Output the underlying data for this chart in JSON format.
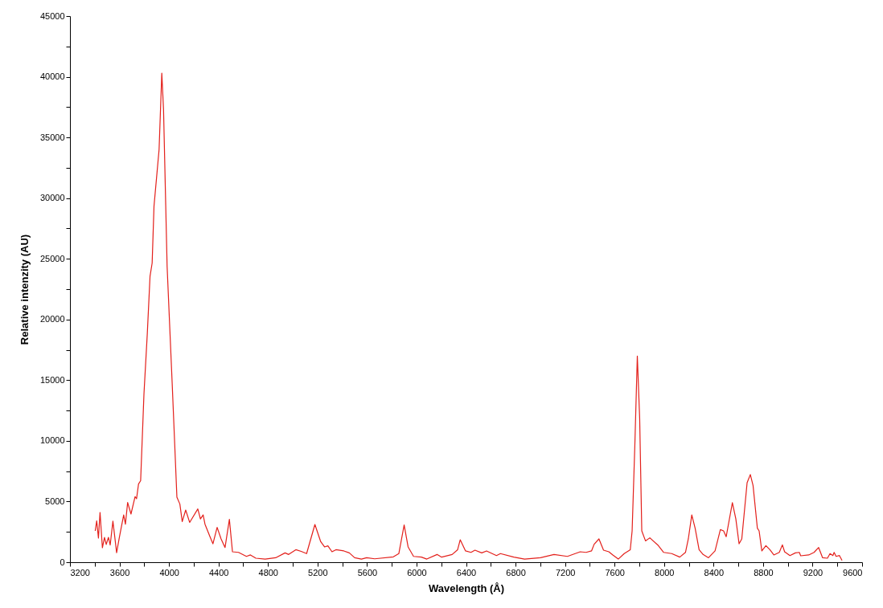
{
  "chart_data": {
    "type": "line",
    "xlabel": "Wavelength (Å)",
    "ylabel": "Relative intenzity (AU)",
    "xlim": [
      3200,
      9600
    ],
    "ylim": [
      0,
      45000
    ],
    "xticks": [
      3200,
      {
        "value": 3400,
        "label": null
      },
      3600,
      {
        "value": 3800,
        "label": null
      },
      4000,
      {
        "value": 4200,
        "label": null
      },
      4400,
      {
        "value": 4600,
        "label": null
      },
      4800,
      {
        "value": 5000,
        "label": null
      },
      5200,
      {
        "value": 5400,
        "label": null
      },
      5600,
      {
        "value": 5800,
        "label": null
      },
      6000,
      {
        "value": 6200,
        "label": null
      },
      6400,
      {
        "value": 6600,
        "label": null
      },
      6800,
      {
        "value": 7000,
        "label": null
      },
      7200,
      {
        "value": 7400,
        "label": null
      },
      7600,
      {
        "value": 7800,
        "label": null
      },
      8000,
      {
        "value": 8200,
        "label": null
      },
      8400,
      {
        "value": 8600,
        "label": null
      },
      8800,
      {
        "value": 9000,
        "label": null
      },
      9200,
      {
        "value": 9400,
        "label": null
      },
      9600
    ],
    "yticks": [
      0,
      {
        "value": 2500,
        "label": null
      },
      5000,
      {
        "value": 7500,
        "label": null
      },
      10000,
      {
        "value": 12500,
        "label": null
      },
      15000,
      {
        "value": 17500,
        "label": null
      },
      20000,
      {
        "value": 22500,
        "label": null
      },
      25000,
      {
        "value": 27500,
        "label": null
      },
      30000,
      {
        "value": 32500,
        "label": null
      },
      35000,
      {
        "value": 37500,
        "label": null
      },
      40000,
      {
        "value": 42500,
        "label": null
      },
      45000
    ],
    "grid": false,
    "marker": "none",
    "line_style": "solid",
    "x": [
      3404,
      3416,
      3430,
      3443,
      3462,
      3479,
      3493,
      3511,
      3525,
      3547,
      3577,
      3599,
      3634,
      3648,
      3666,
      3693,
      3726,
      3738,
      3754,
      3771,
      3798,
      3825,
      3847,
      3864,
      3879,
      3913,
      3920,
      3942,
      3956,
      3985,
      4026,
      4064,
      4088,
      4107,
      4135,
      4167,
      4233,
      4254,
      4276,
      4291,
      4330,
      4355,
      4389,
      4421,
      4453,
      4488,
      4513,
      4562,
      4626,
      4658,
      4702,
      4777,
      4862,
      4938,
      4967,
      5025,
      5068,
      5112,
      5179,
      5226,
      5257,
      5284,
      5317,
      5349,
      5413,
      5457,
      5500,
      5555,
      5597,
      5662,
      5813,
      5857,
      5900,
      5932,
      5976,
      6040,
      6083,
      6166,
      6203,
      6288,
      6332,
      6353,
      6396,
      6440,
      6472,
      6527,
      6566,
      6646,
      6678,
      6786,
      6873,
      7002,
      7111,
      7219,
      7323,
      7370,
      7414,
      7435,
      7474,
      7511,
      7554,
      7586,
      7630,
      7678,
      7727,
      7742,
      7764,
      7784,
      7803,
      7820,
      7850,
      7885,
      7954,
      7997,
      8062,
      8127,
      8173,
      8196,
      8224,
      8251,
      8283,
      8315,
      8359,
      8412,
      8455,
      8481,
      8502,
      8552,
      8580,
      8606,
      8628,
      8671,
      8697,
      8719,
      8754,
      8768,
      8790,
      8823,
      8855,
      8887,
      8931,
      8956,
      8974,
      9017,
      9061,
      9093,
      9104,
      9169,
      9212,
      9249,
      9281,
      9320,
      9341,
      9364,
      9374,
      9390,
      9417,
      9438
    ],
    "series": [
      {
        "color": "#e3201b",
        "values": [
          2580,
          3410,
          1990,
          4100,
          1190,
          2050,
          1460,
          2050,
          1420,
          3380,
          790,
          2050,
          3900,
          3130,
          4920,
          3970,
          5400,
          5230,
          6440,
          6720,
          13900,
          18870,
          23570,
          24650,
          29340,
          33200,
          34000,
          40300,
          37300,
          24360,
          14700,
          5360,
          4790,
          3350,
          4300,
          3280,
          4390,
          3570,
          3900,
          3130,
          2140,
          1520,
          2870,
          1920,
          1210,
          3530,
          860,
          810,
          480,
          600,
          330,
          260,
          370,
          770,
          640,
          1030,
          890,
          710,
          3110,
          1690,
          1260,
          1350,
          860,
          1030,
          930,
          770,
          370,
          260,
          370,
          280,
          440,
          710,
          3070,
          1260,
          480,
          420,
          260,
          640,
          420,
          640,
          1030,
          1850,
          930,
          810,
          990,
          770,
          930,
          550,
          710,
          420,
          260,
          370,
          640,
          480,
          860,
          810,
          930,
          1480,
          1920,
          990,
          860,
          600,
          260,
          710,
          1030,
          2580,
          9660,
          16990,
          11850,
          2580,
          1760,
          2010,
          1370,
          810,
          710,
          420,
          810,
          1920,
          3900,
          2800,
          1030,
          640,
          370,
          930,
          2690,
          2580,
          2100,
          4900,
          3570,
          1520,
          1920,
          6550,
          7220,
          6330,
          2800,
          2580,
          930,
          1370,
          1030,
          600,
          810,
          1430,
          860,
          550,
          770,
          810,
          530,
          600,
          810,
          1210,
          370,
          330,
          710,
          550,
          810,
          480,
          550,
          150
        ]
      }
    ]
  }
}
